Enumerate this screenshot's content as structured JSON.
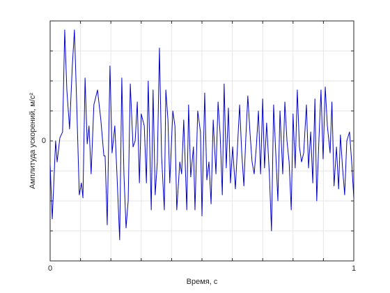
{
  "chart_data": {
    "type": "line",
    "xlabel": "Время, с",
    "ylabel": "Амплитуда ускорений, м/с²",
    "xlim": [
      0,
      1
    ],
    "ylim": [
      -4,
      4
    ],
    "xticks": [
      0,
      {
        "value": 0.1,
        "label": null
      },
      {
        "value": 0.2,
        "label": null
      },
      {
        "value": 0.3,
        "label": null
      },
      {
        "value": 0.4,
        "label": null
      },
      {
        "value": 0.5,
        "label": null
      },
      {
        "value": 0.6,
        "label": null
      },
      {
        "value": 0.7,
        "label": null
      },
      {
        "value": 0.8,
        "label": null
      },
      {
        "value": 0.9,
        "label": null
      },
      1
    ],
    "yticks": [
      {
        "value": -3,
        "label": null
      },
      {
        "value": -2,
        "label": null
      },
      {
        "value": -1,
        "label": null
      },
      0,
      {
        "value": 1,
        "label": null
      },
      {
        "value": 2,
        "label": null
      },
      {
        "value": 3,
        "label": null
      }
    ],
    "grid": true,
    "series": [
      {
        "color": "#0000c8",
        "x": [
          0,
          0.007,
          0.018,
          0.023,
          0.032,
          0.041,
          0.048,
          0.055,
          0.064,
          0.073,
          0.08,
          0.087,
          0.096,
          0.103,
          0.108,
          0.115,
          0.122,
          0.128,
          0.135,
          0.144,
          0.156,
          0.167,
          0.177,
          0.181,
          0.188,
          0.197,
          0.204,
          0.213,
          0.22,
          0.229,
          0.236,
          0.243,
          0.25,
          0.257,
          0.264,
          0.273,
          0.28,
          0.287,
          0.294,
          0.3,
          0.31,
          0.317,
          0.323,
          0.333,
          0.339,
          0.346,
          0.353,
          0.36,
          0.367,
          0.376,
          0.381,
          0.388,
          0.394,
          0.404,
          0.411,
          0.417,
          0.427,
          0.433,
          0.44,
          0.45,
          0.456,
          0.463,
          0.472,
          0.477,
          0.486,
          0.495,
          0.5,
          0.509,
          0.516,
          0.523,
          0.53,
          0.537,
          0.546,
          0.553,
          0.56,
          0.567,
          0.573,
          0.58,
          0.587,
          0.594,
          0.601,
          0.61,
          0.617,
          0.624,
          0.631,
          0.638,
          0.644,
          0.651,
          0.658,
          0.665,
          0.672,
          0.679,
          0.686,
          0.693,
          0.7,
          0.706,
          0.713,
          0.722,
          0.729,
          0.736,
          0.743,
          0.75,
          0.757,
          0.766,
          0.773,
          0.78,
          0.787,
          0.794,
          0.8,
          0.807,
          0.814,
          0.821,
          0.828,
          0.835,
          0.844,
          0.851,
          0.858,
          0.865,
          0.872,
          0.878,
          0.885,
          0.892,
          0.899,
          0.906,
          0.913,
          0.922,
          0.928,
          0.935,
          0.943,
          0.95,
          0.956,
          0.963,
          0.97,
          0.977,
          0.986,
          0.993,
          1
        ],
        "values": [
          -0.8,
          -2.6,
          0.0,
          -0.7,
          0.1,
          0.3,
          3.7,
          1.7,
          0.4,
          2.5,
          3.7,
          1.4,
          -1.8,
          -1.4,
          -1.9,
          2.1,
          -0.1,
          0.5,
          -1.1,
          1.2,
          1.7,
          0.7,
          -0.5,
          -0.5,
          -2.8,
          2.5,
          -0.4,
          0.5,
          -1.1,
          -3.3,
          2.1,
          -1.1,
          -2.9,
          -2.0,
          1.9,
          -0.2,
          0.0,
          1.3,
          -1.4,
          0.9,
          0.5,
          -1.4,
          2.0,
          -2.3,
          1.7,
          -1.8,
          -0.7,
          3.1,
          -0.5,
          -2.3,
          1.7,
          0.7,
          -1.4,
          1.0,
          0.5,
          -2.3,
          -0.7,
          -1.1,
          0.7,
          -2.3,
          1.2,
          -1.2,
          -0.2,
          -2.3,
          1.0,
          0.3,
          -2.5,
          1.6,
          -1.3,
          -0.7,
          -2.1,
          0.7,
          -1.1,
          1.3,
          0.2,
          -1.8,
          1.9,
          -0.9,
          1.1,
          -1.4,
          -0.2,
          -1.6,
          -0.2,
          1.2,
          -0.4,
          -1.5,
          0.0,
          1.5,
          0.3,
          -0.7,
          -1.1,
          -0.2,
          1.0,
          -1.1,
          1.4,
          -0.9,
          0.6,
          -1.1,
          -3.0,
          1.2,
          -0.4,
          -2.0,
          1.0,
          -1.1,
          1.3,
          0.0,
          -0.7,
          -2.3,
          0.9,
          -0.9,
          1.7,
          -0.2,
          -0.7,
          -0.4,
          1.2,
          -0.9,
          0.3,
          -1.4,
          1.4,
          -2.0,
          0.0,
          1.7,
          -0.6,
          1.8,
          0.5,
          -0.4,
          1.3,
          -1.5,
          -0.2,
          -1.6,
          0.2,
          -0.9,
          -1.8,
          0.0,
          0.3,
          -0.7,
          -1.9
        ]
      }
    ]
  }
}
